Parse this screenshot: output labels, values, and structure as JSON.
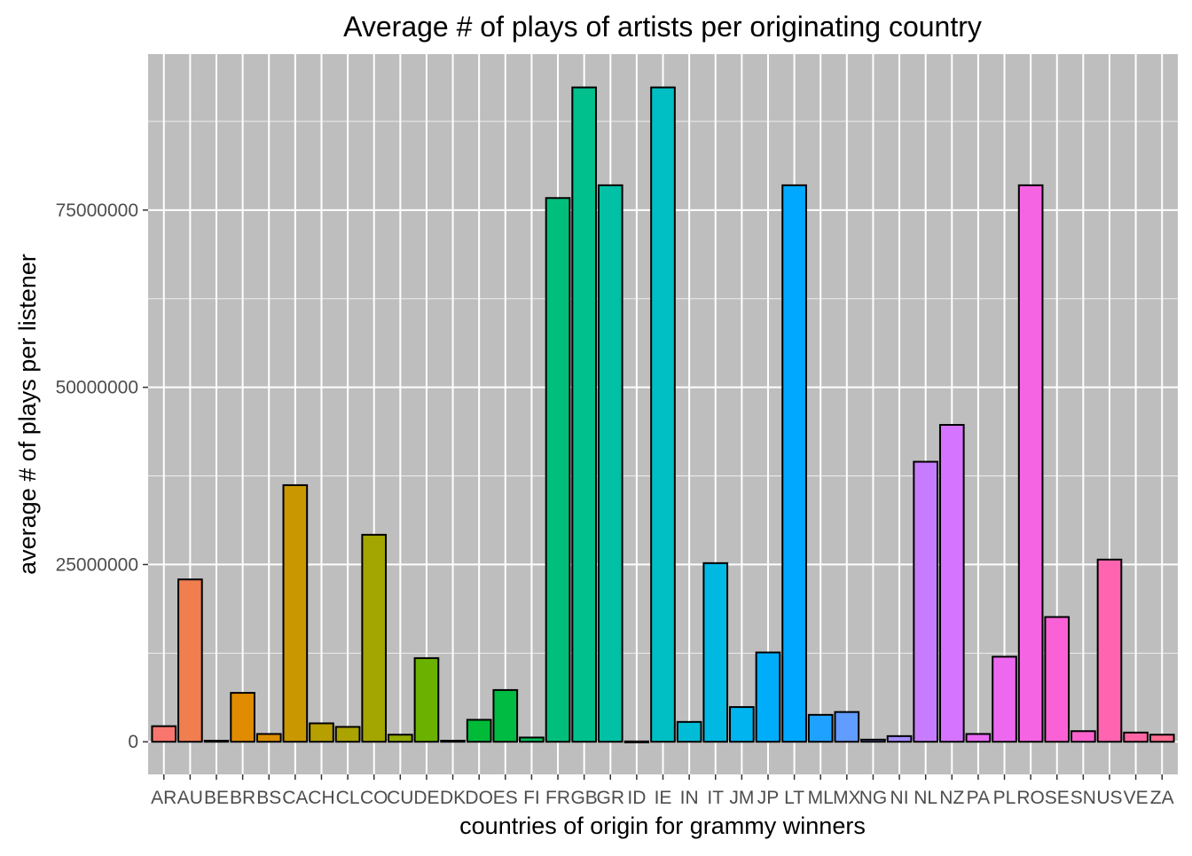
{
  "chart_data": {
    "type": "bar",
    "title": "Average # of plays of artists per originating country",
    "xlabel": "countries of origin for grammy winners",
    "ylabel": "average # of plays per listener",
    "categories": [
      "AR",
      "AU",
      "BE",
      "BR",
      "BS",
      "CA",
      "CH",
      "CL",
      "CO",
      "CU",
      "DE",
      "DK",
      "DO",
      "ES",
      "FI",
      "FR",
      "GB",
      "GR",
      "ID",
      "IE",
      "IN",
      "IT",
      "JM",
      "JP",
      "LT",
      "ML",
      "MX",
      "NG",
      "NI",
      "NL",
      "NZ",
      "PA",
      "PL",
      "RO",
      "SE",
      "SN",
      "US",
      "VE",
      "ZA"
    ],
    "values": [
      2200000,
      22900000,
      150000,
      6900000,
      1100000,
      36200000,
      2600000,
      2100000,
      29200000,
      1000000,
      11800000,
      150000,
      3100000,
      7300000,
      600000,
      76700000,
      92300000,
      78500000,
      50000,
      92300000,
      2800000,
      25200000,
      4900000,
      12600000,
      78500000,
      3800000,
      4200000,
      300000,
      800000,
      39500000,
      44700000,
      1100000,
      12000000,
      78500000,
      17600000,
      1500000,
      25700000,
      1300000,
      1000000
    ],
    "colors": [
      "#F8766D",
      "#F07E4F",
      "#E58700",
      "#E08B00",
      "#DB8E00",
      "#C99800",
      "#B79F00",
      "#ABA300",
      "#A3A500",
      "#93AA00",
      "#6BB100",
      "#34B600",
      "#00BA38",
      "#00BB41",
      "#00BC59",
      "#00BF7D",
      "#00C08D",
      "#00C0A6",
      "#00C1B2",
      "#00BFC4",
      "#00BCD7",
      "#00B9E3",
      "#00B4EF",
      "#00ADFA",
      "#00A9FF",
      "#1FA2FF",
      "#619CFF",
      "#8B93FF",
      "#A58AFF",
      "#C77CFF",
      "#D574FE",
      "#E76BF3",
      "#EC69EF",
      "#F564E3",
      "#FB61D7",
      "#FD62CE",
      "#FF64B0",
      "#FF67A4",
      "#FF6C91"
    ],
    "yticks": [
      0,
      25000000,
      50000000,
      75000000
    ],
    "ytick_labels": [
      "0",
      "25000000",
      "50000000",
      "75000000"
    ],
    "ylim": [
      -4600000,
      97000000
    ],
    "grid": true,
    "legend": "none"
  }
}
